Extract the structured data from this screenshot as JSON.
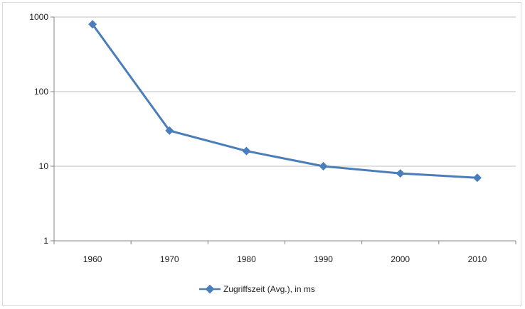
{
  "chart_data": {
    "type": "line",
    "title": "",
    "xlabel": "",
    "ylabel": "",
    "y_scale": "log",
    "ylim": [
      1,
      1000
    ],
    "y_ticks": [
      {
        "value": 1,
        "label": "1"
      },
      {
        "value": 10,
        "label": "10"
      },
      {
        "value": 100,
        "label": "100"
      },
      {
        "value": 1000,
        "label": "1000"
      }
    ],
    "categories": [
      "1960",
      "1970",
      "1980",
      "1990",
      "2000",
      "2010"
    ],
    "series": [
      {
        "name": "Zugriffszeit (Avg.), in ms",
        "color": "#4a7ebb",
        "marker": "diamond",
        "values": [
          800,
          30,
          16,
          10,
          8,
          7
        ]
      }
    ],
    "grid": true,
    "legend_position": "bottom"
  }
}
